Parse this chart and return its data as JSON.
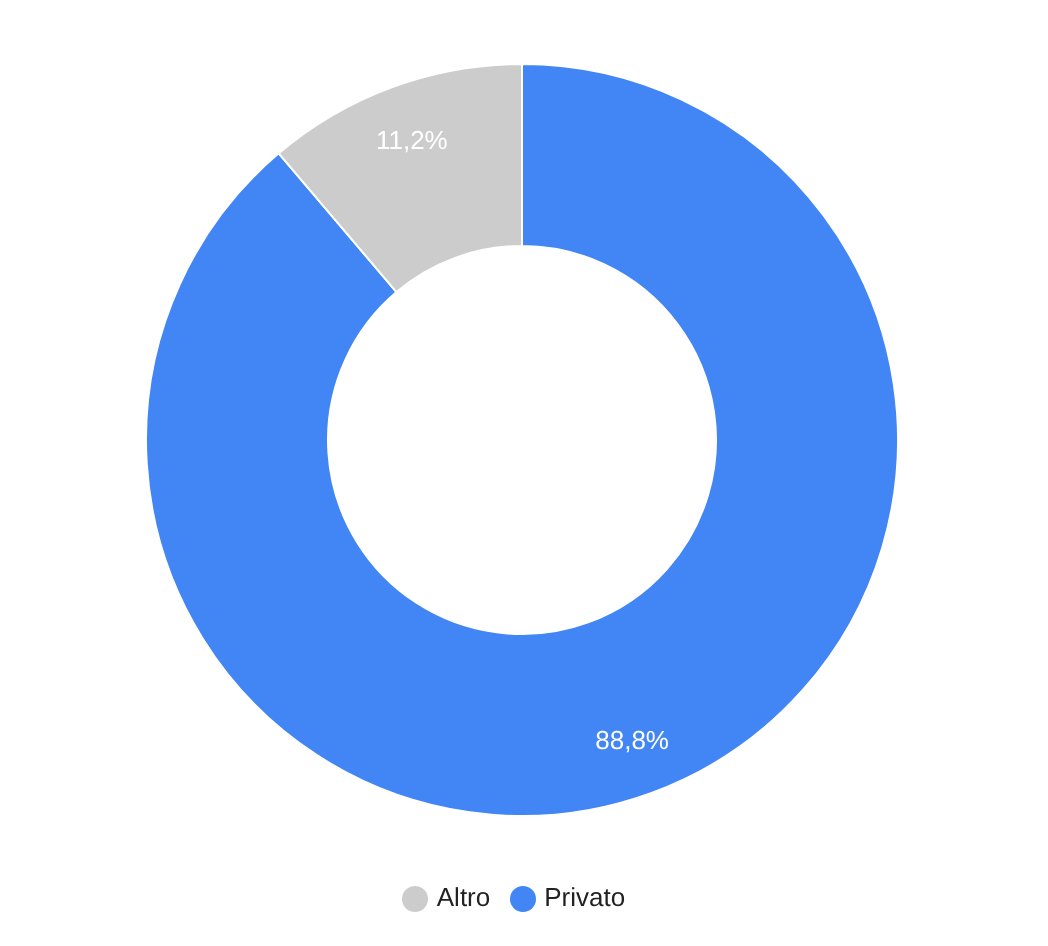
{
  "chart_data": {
    "type": "donut",
    "categories": [
      "Privato",
      "Altro"
    ],
    "values": [
      88.8,
      11.2
    ],
    "colors": [
      "#4285f4",
      "#cccccc"
    ],
    "value_labels": [
      "88,8%",
      "11,2%"
    ],
    "legend": "bottom"
  }
}
